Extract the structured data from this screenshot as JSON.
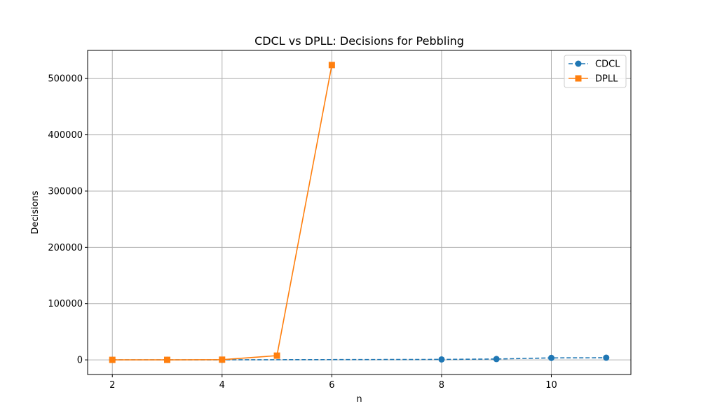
{
  "chart_data": {
    "type": "line",
    "title": "CDCL vs DPLL: Decisions for Pebbling",
    "xlabel": "n",
    "ylabel": "Decisions",
    "xlim": [
      1.55,
      11.45
    ],
    "ylim": [
      -26000,
      550000
    ],
    "xticks": [
      2,
      4,
      6,
      8,
      10
    ],
    "yticks": [
      0,
      100000,
      200000,
      300000,
      400000,
      500000
    ],
    "grid": true,
    "legend_position": "top-right",
    "series": [
      {
        "name": "CDCL",
        "color": "#1f77b4",
        "line_style": "dashed",
        "marker": "circle",
        "x": [
          2,
          3,
          4,
          8,
          9,
          10,
          11
        ],
        "y": [
          10,
          30,
          100,
          800,
          1500,
          3500,
          3800
        ]
      },
      {
        "name": "DPLL",
        "color": "#ff7f0e",
        "line_style": "solid",
        "marker": "square",
        "x": [
          2,
          3,
          4,
          5,
          6
        ],
        "y": [
          5,
          30,
          350,
          7500,
          524000
        ]
      }
    ]
  }
}
